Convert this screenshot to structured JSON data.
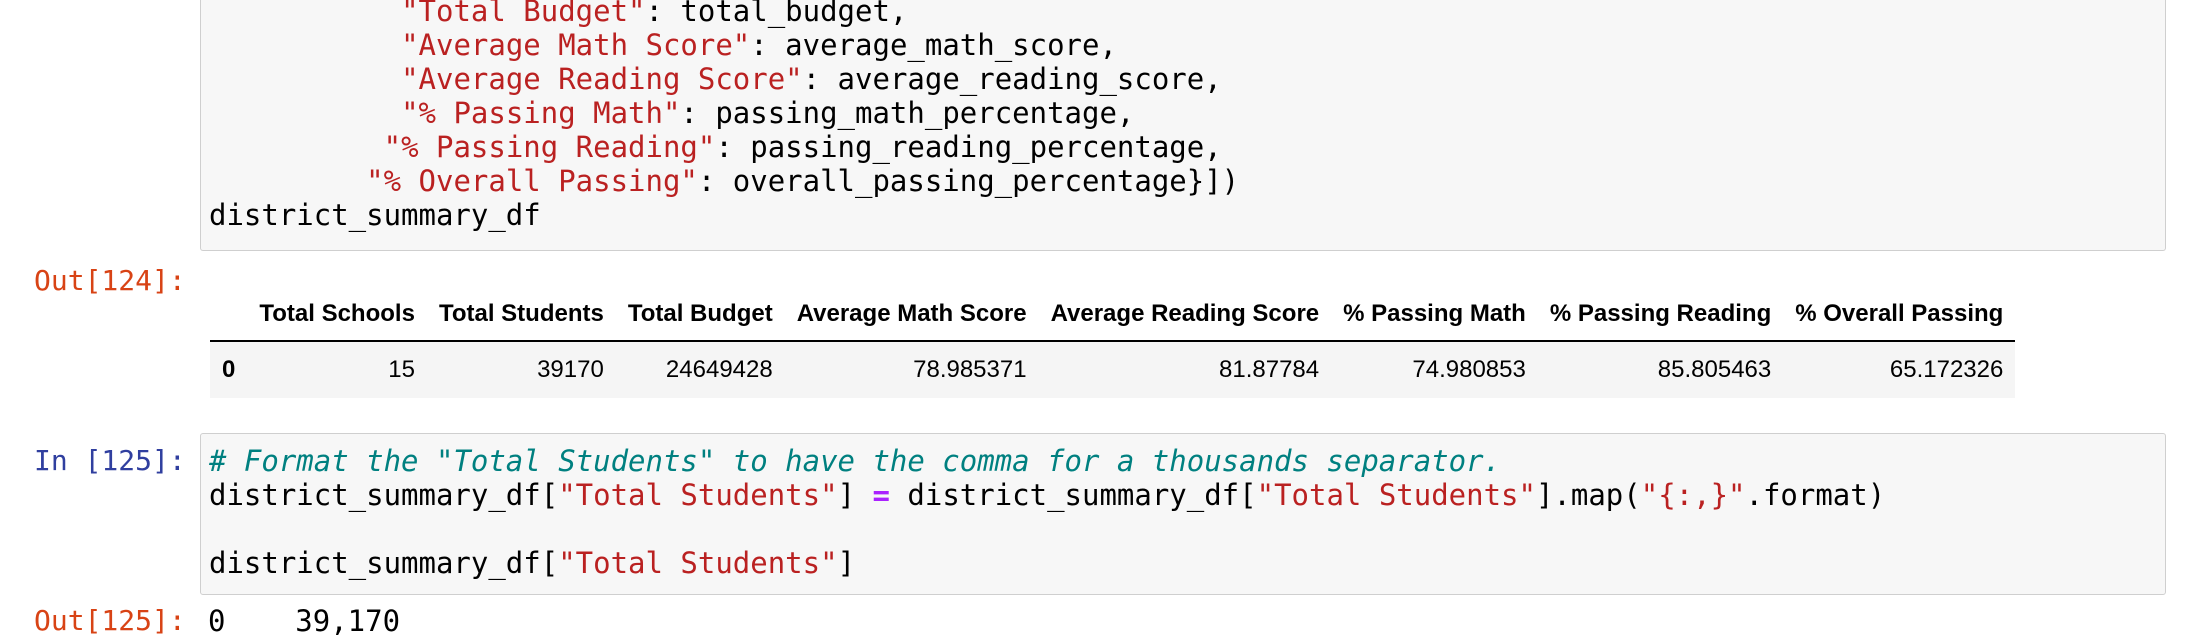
{
  "cell1": {
    "lines": [
      {
        "indent": "           ",
        "key": "\"Total Budget\"",
        "rest": ": total_budget,"
      },
      {
        "indent": "           ",
        "key": "\"Average Math Score\"",
        "rest": ": average_math_score,"
      },
      {
        "indent": "           ",
        "key": "\"Average Reading Score\"",
        "rest": ": average_reading_score,"
      },
      {
        "indent": "           ",
        "key": "\"% Passing Math\"",
        "rest": ": passing_math_percentage,"
      },
      {
        "indent": "          ",
        "key": "\"% Passing Reading\"",
        "rest": ": passing_reading_percentage,"
      },
      {
        "indent": "         ",
        "key": "\"% Overall Passing\"",
        "rest": ": overall_passing_percentage}])"
      }
    ],
    "last_line": "district_summary_df"
  },
  "out124": {
    "prompt": "Out[124]:",
    "columns": [
      "Total Schools",
      "Total Students",
      "Total Budget",
      "Average Math Score",
      "Average Reading Score",
      "% Passing Math",
      "% Passing Reading",
      "% Overall Passing"
    ],
    "rows": [
      {
        "index": "0",
        "values": [
          "15",
          "39170",
          "24649428",
          "78.985371",
          "81.87784",
          "74.980853",
          "85.805463",
          "65.172326"
        ]
      }
    ]
  },
  "cell2": {
    "prompt": "In [125]:",
    "comment": "# Format the \"Total Students\" to have the comma for a thousands separator.",
    "line2_a": "district_summary_df[",
    "line2_str1": "\"Total Students\"",
    "line2_b": "] ",
    "line2_op": "=",
    "line2_c": " district_summary_df[",
    "line2_str2": "\"Total Students\"",
    "line2_d": "].map(",
    "line2_str3": "\"{:,}\"",
    "line2_e": ".format)",
    "line4_a": "district_summary_df[",
    "line4_str": "\"Total Students\"",
    "line4_b": "]"
  },
  "out125": {
    "prompt": "Out[125]:",
    "text": "0    39,170"
  }
}
